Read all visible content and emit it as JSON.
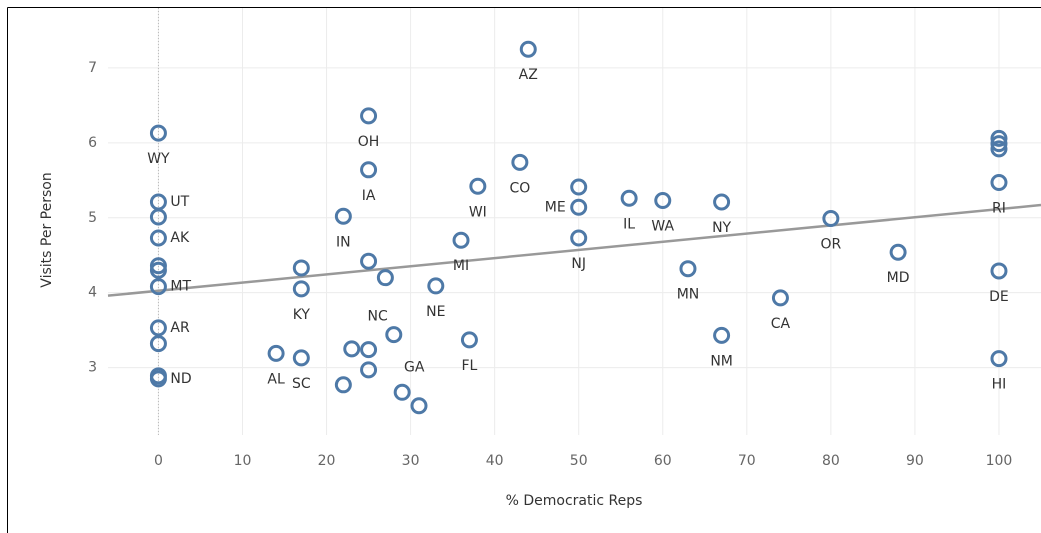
{
  "chart_data": {
    "type": "scatter",
    "x_label": "% Democratic Reps",
    "y_label": "Visits Per Person",
    "x": [
      0,
      0,
      0,
      0,
      0,
      0,
      0,
      0,
      0,
      0,
      0,
      25,
      25,
      22,
      44,
      43,
      38,
      50,
      50,
      50,
      56,
      60,
      67,
      80,
      88,
      100,
      100,
      100,
      100,
      100,
      100,
      36,
      17,
      17,
      25,
      27,
      33,
      28,
      23,
      25,
      25,
      14,
      17,
      22,
      29,
      31,
      37,
      63,
      67,
      74
    ],
    "values": [
      6.13,
      5.21,
      5.01,
      4.73,
      4.36,
      4.3,
      4.08,
      3.53,
      3.32,
      2.89,
      2.85,
      6.36,
      5.64,
      5.02,
      7.25,
      5.74,
      5.42,
      5.41,
      5.14,
      4.73,
      5.26,
      5.23,
      5.21,
      4.99,
      4.54,
      6.06,
      5.99,
      5.92,
      5.47,
      4.29,
      3.12,
      4.7,
      4.33,
      4.05,
      4.42,
      4.2,
      4.09,
      3.44,
      3.25,
      3.24,
      2.97,
      3.19,
      3.13,
      2.77,
      2.67,
      2.49,
      3.37,
      4.32,
      3.43,
      3.93
    ],
    "point_labels": [
      "WY",
      "UT",
      null,
      "AK",
      null,
      null,
      "MT",
      "AR",
      null,
      null,
      "ND",
      "OH",
      "IA",
      "IN",
      "AZ",
      "CO",
      "WI",
      null,
      "ME",
      "NJ",
      "IL",
      "WA",
      "NY",
      "OR",
      "MD",
      null,
      null,
      null,
      "RI",
      "DE",
      "HI",
      "MI",
      null,
      "KY",
      null,
      null,
      "NE",
      "NC",
      null,
      null,
      null,
      "AL",
      "SC",
      null,
      "GA",
      null,
      "FL",
      "MN",
      "NM",
      "CA"
    ],
    "color": "#4e79a7",
    "trend_line": {
      "x": [
        -6,
        105
      ],
      "y": [
        3.96,
        5.17
      ],
      "color": "#999999"
    },
    "xlim": [
      -6,
      105
    ],
    "ylim": [
      2.1,
      7.8
    ],
    "xticks": [
      0,
      10,
      20,
      30,
      40,
      50,
      60,
      70,
      80,
      90,
      100
    ],
    "yticks": [
      3,
      4,
      5,
      6,
      7
    ],
    "grid": true
  }
}
